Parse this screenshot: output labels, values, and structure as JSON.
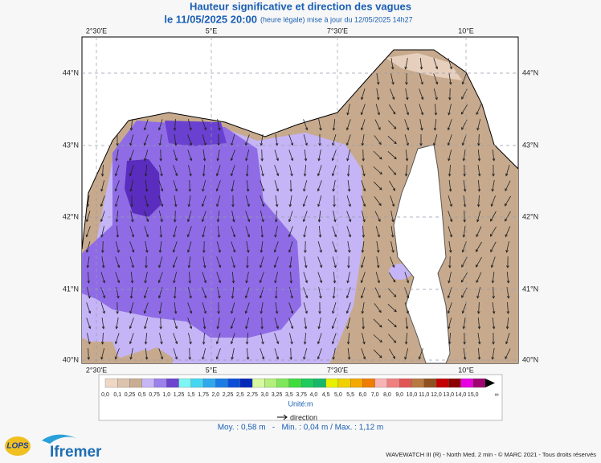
{
  "header": {
    "title": "Hauteur significative et direction des vagues",
    "date": "le 11/05/2025 20:00",
    "update": "(heure légale) mise à jour du 12/05/2025 14h27"
  },
  "map": {
    "lon_labels": [
      "2°30'E",
      "5°E",
      "7°30'E",
      "10°E"
    ],
    "lat_labels": [
      "44°N",
      "43°N",
      "42°N",
      "41°N",
      "40°N"
    ]
  },
  "legend": {
    "scale_labels": [
      "0,0",
      "0,1",
      "0,25",
      "0,5",
      "0,75",
      "1,0",
      "1,25",
      "1,5",
      "1,75",
      "2,0",
      "2,25",
      "2,5",
      "2,75",
      "3,0",
      "3,25",
      "3,5",
      "3,75",
      "4,0",
      "4,5",
      "5,0",
      "5,5",
      "6,0",
      "7,0",
      "8,0",
      "9,0",
      "10,0",
      "11,0",
      "12,0",
      "13,0",
      "14,0",
      "15,0",
      "∞"
    ],
    "colors": [
      "#efd7c6",
      "#dcc3ad",
      "#c9ad92",
      "#c6b6f6",
      "#9c80ec",
      "#6c44d0",
      "#80f6f4",
      "#46d6f0",
      "#30a8ee",
      "#1c7ce6",
      "#0c4ed8",
      "#0628b8",
      "#d8f8a0",
      "#b4ef7c",
      "#7ee85a",
      "#3edc3c",
      "#1ccc5c",
      "#18b86a",
      "#e8f000",
      "#f0d000",
      "#f4a800",
      "#f07c00",
      "#f8b4b4",
      "#f08080",
      "#e05454",
      "#b87840",
      "#905020",
      "#c40000",
      "#8c0000",
      "#e800e0",
      "#a00070"
    ],
    "unit": "Unité:m",
    "direction": "direction"
  },
  "stats": "Moy. : 0,58 m   -   Min. : 0,04 m / Max. : 1,12 m",
  "footer": {
    "logo_lops": "LOPS",
    "logo_ifremer": "Ifremer",
    "credits": "WAVEWATCH III (R) - North Med. 2 min - © MARC 2021 - Tous droits réservés"
  }
}
